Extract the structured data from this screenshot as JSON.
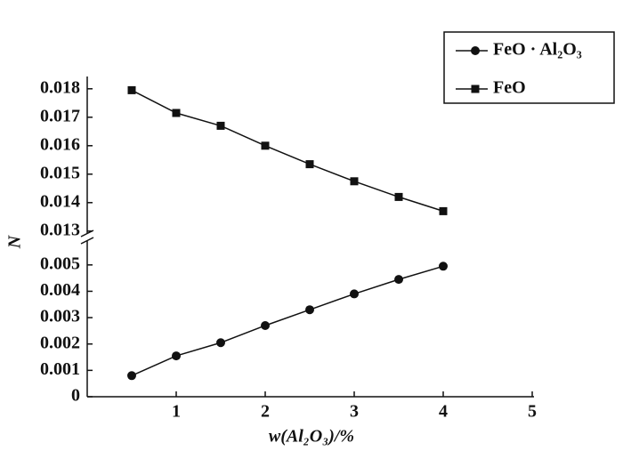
{
  "chart_data": {
    "type": "line",
    "x_label": "w(Al₂O₃)/%",
    "y_label": "N",
    "x": [
      0.5,
      1,
      1.5,
      2,
      2.5,
      3,
      3.5,
      4
    ],
    "xlim": [
      0,
      5
    ],
    "xticks": [
      1,
      2,
      3,
      4,
      5
    ],
    "ylim": [
      0,
      0.0055
    ],
    "yticks": [
      0,
      0.001,
      0.002,
      0.003,
      0.004,
      0.005
    ],
    "y2lim": [
      0.0129,
      0.0184
    ],
    "y2ticks": [
      0.013,
      0.014,
      0.015,
      0.016,
      0.017,
      0.018
    ],
    "legend": "upper right",
    "series": [
      {
        "name": "FeO · Al₂O₃",
        "color": "#111111",
        "marker": "circle",
        "values": [
          0.0008,
          0.00155,
          0.00205,
          0.0027,
          0.0033,
          0.0039,
          0.00445,
          0.00495
        ]
      },
      {
        "name": "FeO",
        "color": "#111111",
        "marker": "square",
        "axis": "y2",
        "values": [
          0.01795,
          0.01715,
          0.0167,
          0.016,
          0.01535,
          0.01475,
          0.0142,
          0.0137
        ]
      }
    ]
  }
}
